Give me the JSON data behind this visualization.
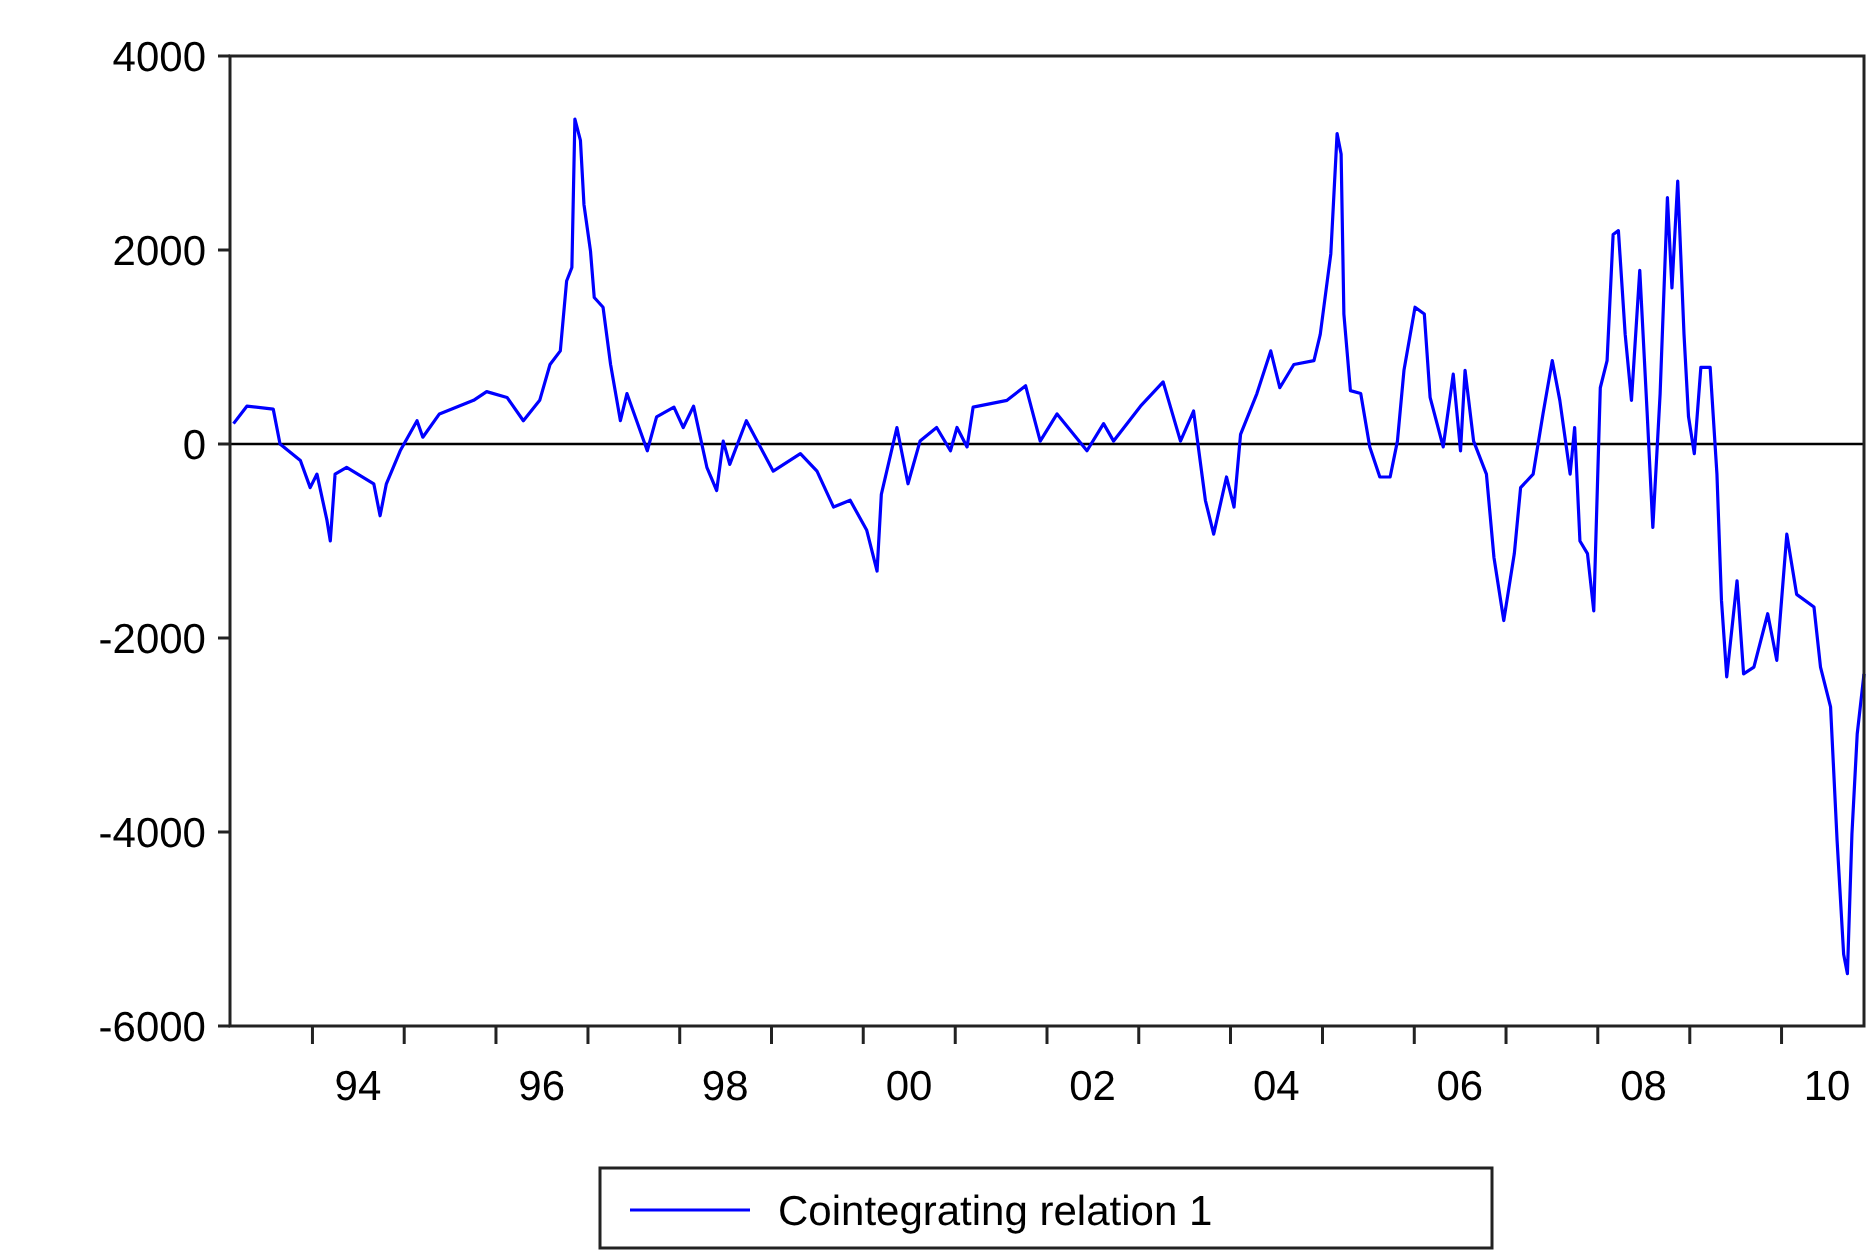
{
  "chart_data": {
    "type": "line",
    "x": [
      "1993-02-21",
      "1993-04-15",
      "1993-07-29",
      "1993-08-25",
      "1993-11-14",
      "1993-12-23",
      "1994-01-19",
      "1994-02-28",
      "1994-03-13",
      "1994-04-01",
      "1994-05-17",
      "1994-09-02",
      "1994-09-27",
      "1994-10-22",
      "1994-12-16",
      "1995-02-21",
      "1995-03-16",
      "1995-05-21",
      "1995-10-04",
      "1995-11-25",
      "1996-02-14",
      "1996-04-19",
      "1996-06-23",
      "1996-08-03",
      "1996-09-13",
      "1996-10-08",
      "1996-10-29",
      "1996-11-10",
      "1996-12-02",
      "1996-12-16",
      "1997-01-11",
      "1997-01-26",
      "1997-03-02",
      "1997-04-01",
      "1997-05-10",
      "1997-06-05",
      "1997-08-25",
      "1997-10-01",
      "1997-12-09",
      "1998-01-15",
      "1998-02-25",
      "1998-04-19",
      "1998-05-28",
      "1998-06-23",
      "1998-07-19",
      "1998-09-23",
      "1999-01-08",
      "1999-04-26",
      "1999-07-01",
      "1999-09-05",
      "1999-11-10",
      "2000-01-15",
      "2000-02-25",
      "2000-03-13",
      "2000-05-14",
      "2000-06-27",
      "2000-08-14",
      "2000-10-19",
      "2000-12-13",
      "2001-01-08",
      "2001-02-17",
      "2001-03-13",
      "2001-07-26",
      "2001-10-08",
      "2001-12-05",
      "2002-02-10",
      "2002-06-09",
      "2002-08-14",
      "2002-09-23",
      "2003-01-08",
      "2003-04-08",
      "2003-06-16",
      "2003-08-07",
      "2003-09-23",
      "2003-10-26",
      "2003-12-16",
      "2004-01-15",
      "2004-02-10",
      "2004-04-15",
      "2004-06-09",
      "2004-07-15",
      "2004-09-09",
      "2004-11-28",
      "2004-12-23",
      "2005-02-03",
      "2005-02-28",
      "2005-03-16",
      "2005-03-27",
      "2005-04-22",
      "2005-06-02",
      "2005-07-08",
      "2005-08-17",
      "2005-09-27",
      "2005-10-26",
      "2005-11-21",
      "2006-01-04",
      "2006-02-10",
      "2006-03-05",
      "2006-04-26",
      "2006-06-05",
      "2006-07-04",
      "2006-07-22",
      "2006-08-25",
      "2006-10-15",
      "2006-11-14",
      "2006-12-23",
      "2007-02-03",
      "2007-02-28",
      "2007-04-19",
      "2007-05-28",
      "2007-07-04",
      "2007-08-03",
      "2007-09-13",
      "2007-10-01",
      "2007-10-22",
      "2007-11-21",
      "2007-12-16",
      "2008-01-11",
      "2008-02-07",
      "2008-03-02",
      "2008-03-23",
      "2008-04-19",
      "2008-05-14",
      "2008-06-16",
      "2008-07-15",
      "2008-08-07",
      "2008-09-05",
      "2008-10-04",
      "2008-10-22",
      "2008-11-14",
      "2008-12-09",
      "2008-12-27",
      "2009-01-19",
      "2009-02-14",
      "2009-03-23",
      "2009-04-19",
      "2009-05-07",
      "2009-05-28",
      "2009-07-08",
      "2009-08-03",
      "2009-09-13",
      "2009-11-07",
      "2009-12-13",
      "2010-01-22",
      "2010-03-02",
      "2010-05-10",
      "2010-06-05",
      "2010-07-15",
      "2010-08-10",
      "2010-09-05",
      "2010-09-20",
      "2010-10-08",
      "2010-10-29",
      "2010-11-25"
    ],
    "series": [
      {
        "name": "Cointegrating relation 1",
        "color": "#0000ff",
        "values": [
          210,
          390,
          360,
          0,
          -170,
          -450,
          -310,
          -790,
          -1000,
          -310,
          -240,
          -410,
          -740,
          -410,
          -70,
          240,
          70,
          310,
          450,
          540,
          480,
          240,
          450,
          820,
          960,
          1680,
          1820,
          3350,
          3130,
          2470,
          1990,
          1510,
          1410,
          820,
          240,
          520,
          -70,
          280,
          380,
          170,
          390,
          -240,
          -480,
          30,
          -210,
          240,
          -280,
          -100,
          -280,
          -650,
          -580,
          -890,
          -1310,
          -520,
          170,
          -410,
          30,
          170,
          -70,
          170,
          -30,
          380,
          450,
          600,
          30,
          310,
          -70,
          210,
          30,
          390,
          640,
          30,
          340,
          -580,
          -930,
          -340,
          -650,
          100,
          520,
          960,
          580,
          820,
          860,
          1130,
          1960,
          3200,
          2990,
          1340,
          550,
          520,
          -30,
          -340,
          -340,
          30,
          760,
          1410,
          1340,
          480,
          -30,
          720,
          -70,
          760,
          30,
          -310,
          -1170,
          -1820,
          -1130,
          -450,
          -310,
          310,
          860,
          450,
          -310,
          170,
          -1000,
          -1130,
          -1720,
          580,
          860,
          2160,
          2200,
          1130,
          450,
          1790,
          340,
          -860,
          520,
          2540,
          1610,
          2710,
          1130,
          280,
          -100,
          790,
          790,
          -310,
          -1610,
          -2400,
          -1410,
          -2370,
          -2300,
          -1750,
          -2230,
          -930,
          -1550,
          -1680,
          -2300,
          -2710,
          -4090,
          -5260,
          -5460,
          -4020,
          -2990,
          -2370
        ]
      }
    ],
    "xlim": [
      "1993-02-07",
      "2010-11-25"
    ],
    "xticks": [
      {
        "value": "1994",
        "label": null
      },
      {
        "value": "1994-07",
        "label": "94"
      },
      {
        "value": "1995",
        "label": null
      },
      {
        "value": "1996",
        "label": null
      },
      {
        "value": "1996-07",
        "label": "96"
      },
      {
        "value": "1997",
        "label": null
      },
      {
        "value": "1998",
        "label": null
      },
      {
        "value": "1998-07",
        "label": "98"
      },
      {
        "value": "1999",
        "label": null
      },
      {
        "value": "2000",
        "label": null
      },
      {
        "value": "2000-07",
        "label": "00"
      },
      {
        "value": "2001",
        "label": null
      },
      {
        "value": "2002",
        "label": null
      },
      {
        "value": "2002-07",
        "label": "02"
      },
      {
        "value": "2003",
        "label": null
      },
      {
        "value": "2004",
        "label": null
      },
      {
        "value": "2004-07",
        "label": "04"
      },
      {
        "value": "2005",
        "label": null
      },
      {
        "value": "2006",
        "label": null
      },
      {
        "value": "2006-07",
        "label": "06"
      },
      {
        "value": "2007",
        "label": null
      },
      {
        "value": "2008",
        "label": null
      },
      {
        "value": "2008-07",
        "label": "08"
      },
      {
        "value": "2009",
        "label": null
      },
      {
        "value": "2010",
        "label": null
      },
      {
        "value": "2010-07",
        "label": "10"
      }
    ],
    "ylim": [
      -6000,
      4000
    ],
    "yticks": [
      -6000,
      -4000,
      -2000,
      0,
      2000,
      4000
    ],
    "ref_lines": [
      {
        "axis": "y",
        "value": 0,
        "color": "#000000"
      }
    ],
    "legend": "bottom",
    "grid": false,
    "line_style": "solid",
    "marker": "none"
  }
}
